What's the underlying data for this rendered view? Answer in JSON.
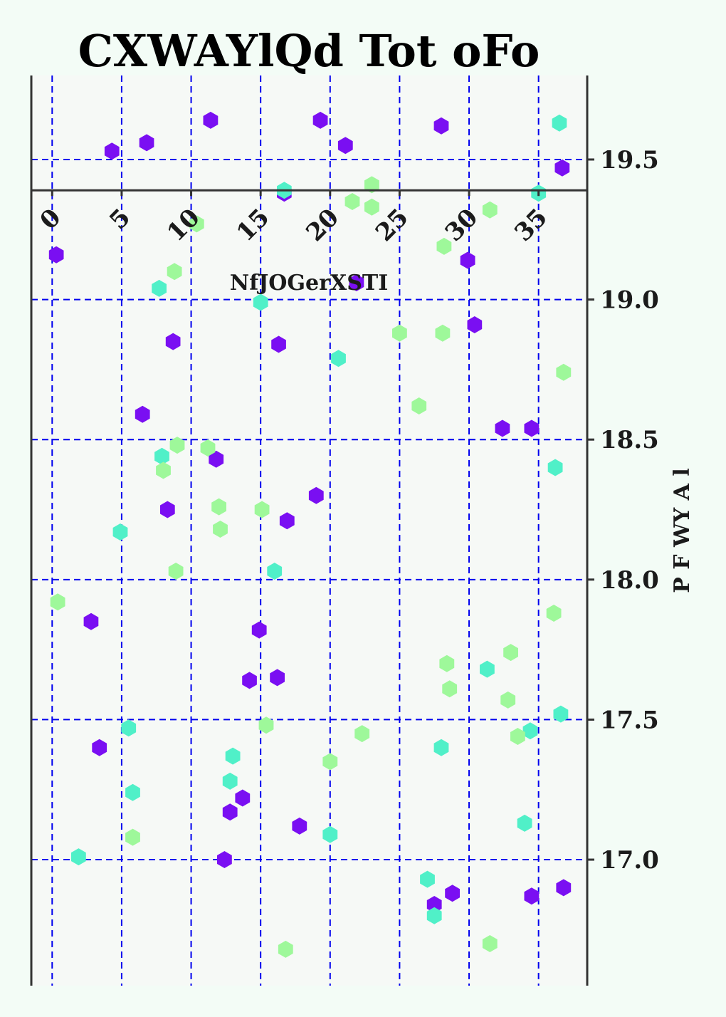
{
  "chart_data": {
    "type": "scatter",
    "title": "CXWAYlQd Tot oFo",
    "xlabel": "NfJOGerXSTI",
    "ylabel": "P F WY A l",
    "xlim": [
      -1.5,
      38.5
    ],
    "ylim": [
      16.55,
      19.8
    ],
    "x_axis_crossing_y": 19.39,
    "xticks": [
      0,
      5,
      10,
      15,
      20,
      25,
      30,
      35
    ],
    "yticks": [
      17.0,
      17.5,
      18.0,
      18.5,
      19.0,
      19.5
    ],
    "ytick_labels": [
      "17.0",
      "17.5",
      "18.0",
      "18.5",
      "19.0",
      "19.5"
    ],
    "grid": true,
    "grid_color": "#0000ee",
    "plot_background": "#f6f9f6",
    "marker": "hexagon",
    "series": [
      {
        "color": "#7a0ff2",
        "points": [
          [
            0.3,
            19.16
          ],
          [
            4.3,
            19.53
          ],
          [
            6.8,
            19.56
          ],
          [
            11.4,
            19.64
          ],
          [
            19.3,
            19.64
          ],
          [
            21.1,
            19.55
          ],
          [
            28.0,
            19.62
          ],
          [
            36.7,
            19.47
          ],
          [
            16.7,
            19.38
          ],
          [
            21.9,
            19.06
          ],
          [
            29.9,
            19.14
          ],
          [
            30.4,
            18.91
          ],
          [
            8.7,
            18.85
          ],
          [
            16.3,
            18.84
          ],
          [
            6.5,
            18.59
          ],
          [
            32.4,
            18.54
          ],
          [
            34.5,
            18.54
          ],
          [
            11.8,
            18.43
          ],
          [
            19.0,
            18.3
          ],
          [
            8.3,
            18.25
          ],
          [
            16.9,
            18.21
          ],
          [
            2.8,
            17.85
          ],
          [
            14.9,
            17.82
          ],
          [
            14.2,
            17.64
          ],
          [
            16.2,
            17.65
          ],
          [
            3.4,
            17.4
          ],
          [
            13.7,
            17.22
          ],
          [
            12.8,
            17.17
          ],
          [
            17.8,
            17.12
          ],
          [
            12.4,
            17.0
          ],
          [
            27.5,
            16.84
          ],
          [
            28.8,
            16.88
          ],
          [
            34.5,
            16.87
          ],
          [
            36.8,
            16.9
          ]
        ]
      },
      {
        "color": "#50f0c8",
        "points": [
          [
            36.5,
            19.63
          ],
          [
            16.7,
            19.39
          ],
          [
            35.0,
            19.38
          ],
          [
            7.7,
            19.04
          ],
          [
            15.0,
            18.99
          ],
          [
            20.6,
            18.79
          ],
          [
            7.9,
            18.44
          ],
          [
            36.2,
            18.4
          ],
          [
            4.9,
            18.17
          ],
          [
            16.0,
            18.03
          ],
          [
            31.3,
            17.68
          ],
          [
            5.5,
            17.47
          ],
          [
            36.6,
            17.52
          ],
          [
            34.4,
            17.46
          ],
          [
            13.0,
            17.37
          ],
          [
            28.0,
            17.4
          ],
          [
            12.8,
            17.28
          ],
          [
            5.8,
            17.24
          ],
          [
            34.0,
            17.13
          ],
          [
            20.0,
            17.09
          ],
          [
            1.9,
            17.01
          ],
          [
            27.0,
            16.93
          ],
          [
            27.5,
            16.8
          ]
        ]
      },
      {
        "color": "#9ef89a",
        "points": [
          [
            23.0,
            19.41
          ],
          [
            21.6,
            19.35
          ],
          [
            23.0,
            19.33
          ],
          [
            31.5,
            19.32
          ],
          [
            10.4,
            19.27
          ],
          [
            28.2,
            19.19
          ],
          [
            8.8,
            19.1
          ],
          [
            25.0,
            18.88
          ],
          [
            28.1,
            18.88
          ],
          [
            36.8,
            18.74
          ],
          [
            26.4,
            18.62
          ],
          [
            9.0,
            18.48
          ],
          [
            11.2,
            18.47
          ],
          [
            8.0,
            18.39
          ],
          [
            12.0,
            18.26
          ],
          [
            15.1,
            18.25
          ],
          [
            12.1,
            18.18
          ],
          [
            8.9,
            18.03
          ],
          [
            0.4,
            17.92
          ],
          [
            36.1,
            17.88
          ],
          [
            33.0,
            17.74
          ],
          [
            28.4,
            17.7
          ],
          [
            28.6,
            17.61
          ],
          [
            32.8,
            17.57
          ],
          [
            15.4,
            17.48
          ],
          [
            22.3,
            17.45
          ],
          [
            33.5,
            17.44
          ],
          [
            20.0,
            17.35
          ],
          [
            5.8,
            17.08
          ],
          [
            16.8,
            16.68
          ],
          [
            31.5,
            16.7
          ]
        ]
      }
    ]
  }
}
